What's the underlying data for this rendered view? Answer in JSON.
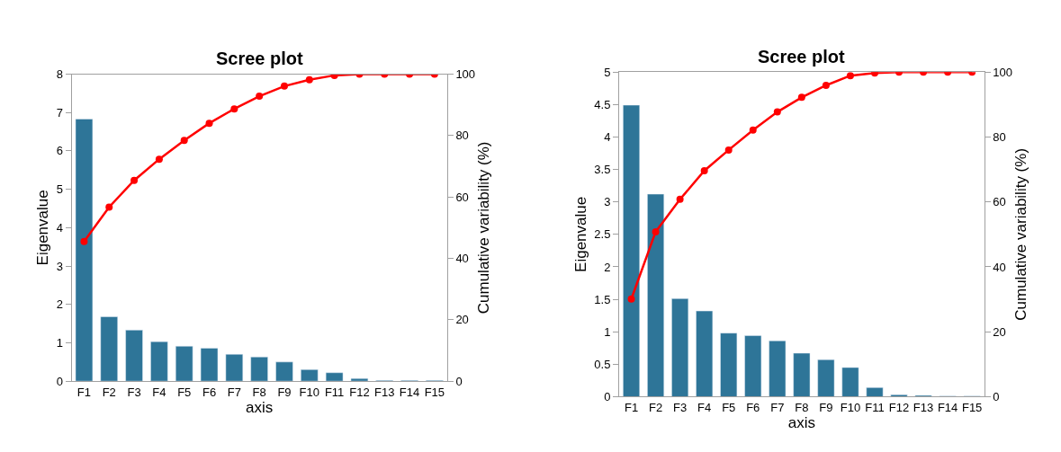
{
  "chart_data": [
    {
      "type": "bar",
      "title": "Scree plot",
      "xlabel": "axis",
      "ylabel": "Eigenvalue",
      "y2label": "Cumulative variability (%)",
      "categories": [
        "F1",
        "F2",
        "F3",
        "F4",
        "F5",
        "F6",
        "F7",
        "F8",
        "F9",
        "F10",
        "F11",
        "F12",
        "F13",
        "F14",
        "F15"
      ],
      "series": [
        {
          "color": "#2e7598",
          "values": [
            6.83,
            1.68,
            1.33,
            1.03,
            0.91,
            0.86,
            0.7,
            0.63,
            0.5,
            0.3,
            0.22,
            0.07,
            0.02,
            0.02,
            0.02
          ]
        },
        {
          "type": "line",
          "axis": "y2",
          "color": "#ff0000",
          "marker": "circle",
          "values": [
            45.5,
            56.7,
            65.4,
            72.3,
            78.4,
            84.0,
            88.7,
            92.8,
            96.1,
            98.2,
            99.6,
            100,
            100,
            100,
            100
          ]
        }
      ],
      "ylim": [
        0,
        8
      ],
      "yticks": [
        0,
        1,
        2,
        3,
        4,
        5,
        6,
        7,
        8
      ],
      "y2lim": [
        0,
        100
      ],
      "y2ticks": [
        0,
        20,
        40,
        60,
        80,
        100
      ]
    },
    {
      "type": "bar",
      "title": "Scree plot",
      "xlabel": "axis",
      "ylabel": "Eigenvalue",
      "y2label": "Cumulative variability (%)",
      "categories": [
        "F1",
        "F2",
        "F3",
        "F4",
        "F5",
        "F6",
        "F7",
        "F8",
        "F9",
        "F10",
        "F11",
        "F12",
        "F13",
        "F14",
        "F15"
      ],
      "series": [
        {
          "color": "#2e7598",
          "values": [
            4.49,
            3.12,
            1.51,
            1.32,
            0.98,
            0.94,
            0.86,
            0.67,
            0.57,
            0.45,
            0.14,
            0.03,
            0.02,
            0.01,
            0.01
          ]
        },
        {
          "type": "line",
          "axis": "y2",
          "color": "#ff0000",
          "marker": "circle",
          "values": [
            30.1,
            50.8,
            60.8,
            69.6,
            76.0,
            82.1,
            87.7,
            92.2,
            95.9,
            98.9,
            99.7,
            100,
            100,
            100,
            100
          ]
        }
      ],
      "ylim": [
        0,
        5
      ],
      "yticks": [
        0,
        0.5,
        1,
        1.5,
        2,
        2.5,
        3,
        3.5,
        4,
        4.5,
        5
      ],
      "y2lim": [
        0,
        100
      ],
      "y2ticks": [
        0,
        20,
        40,
        60,
        80,
        100
      ]
    }
  ]
}
